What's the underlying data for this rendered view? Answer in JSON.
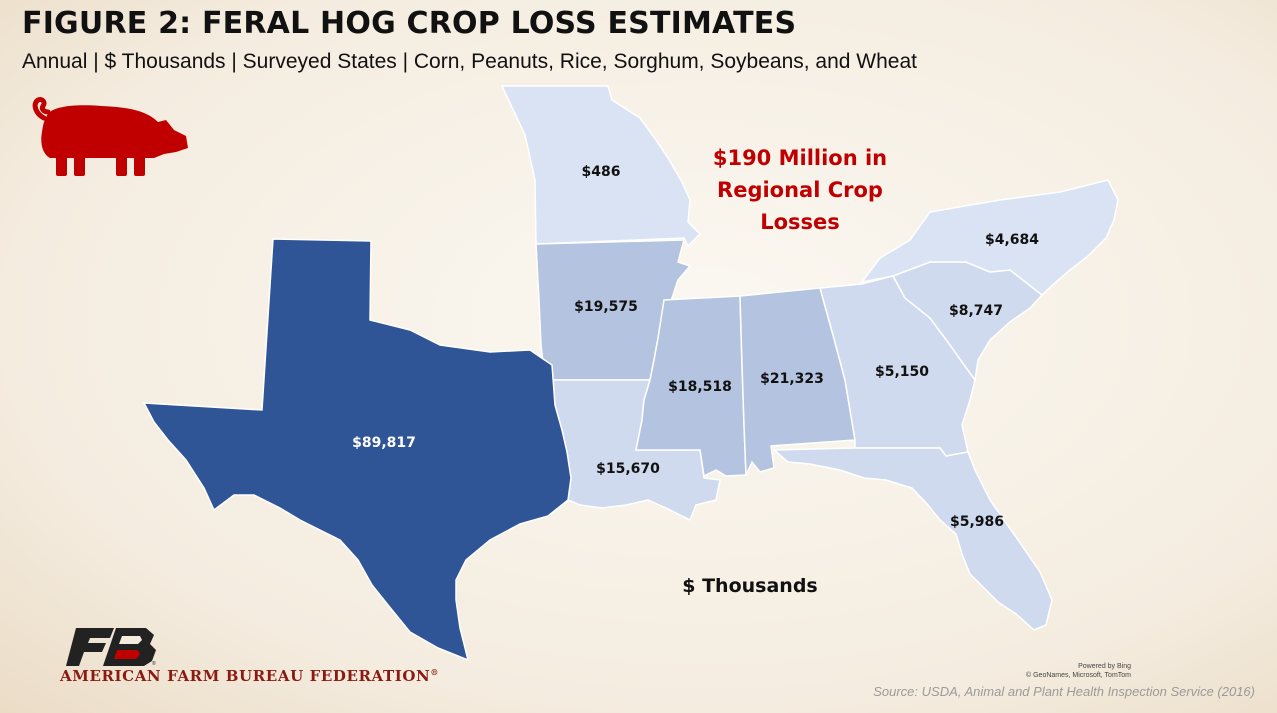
{
  "title": "FIGURE 2: FERAL HOG CROP LOSS ESTIMATES",
  "subtitle": "Annual | $ Thousands | Surveyed States | Corn, Peanuts, Rice, Sorghum, Soybeans, and Wheat",
  "callout": [
    "$190 Million in",
    "Regional Crop",
    "Losses"
  ],
  "units_label": "$ Thousands",
  "colors": {
    "texas": "#2f5597",
    "tier2": "#b4c4e0",
    "tier3": "#cfdaee",
    "tier4": "#dae3f3",
    "accent": "#c00000"
  },
  "map_data": {
    "type": "choropleth",
    "unit": "$ Thousands",
    "states": [
      {
        "id": "texas",
        "value": 89817,
        "label": "$89,817",
        "tier": "texas"
      },
      {
        "id": "missouri",
        "value": 486,
        "label": "$486",
        "tier": "tier4"
      },
      {
        "id": "arkansas",
        "value": 19575,
        "label": "$19,575",
        "tier": "tier2"
      },
      {
        "id": "louisiana",
        "value": 15670,
        "label": "$15,670",
        "tier": "tier3"
      },
      {
        "id": "mississippi",
        "value": 18518,
        "label": "$18,518",
        "tier": "tier2"
      },
      {
        "id": "alabama",
        "value": 21323,
        "label": "$21,323",
        "tier": "tier2"
      },
      {
        "id": "georgia",
        "value": 5150,
        "label": "$5,150",
        "tier": "tier3"
      },
      {
        "id": "florida",
        "value": 5986,
        "label": "$5,986",
        "tier": "tier3"
      },
      {
        "id": "south-carolina",
        "value": 8747,
        "label": "$8,747",
        "tier": "tier3"
      },
      {
        "id": "north-carolina",
        "value": 4684,
        "label": "$4,684",
        "tier": "tier4"
      }
    ]
  },
  "logo": {
    "mark": "FB",
    "org_name": "AMERICAN FARM BUREAU FEDERATION",
    "registered": "®"
  },
  "attribution": {
    "line1": "Powered by Bing",
    "line2": "© GeoNames, Microsoft, TomTom"
  },
  "source": "Source: USDA, Animal and Plant Health Inspection Service (2016)",
  "icons": {
    "hog": "hog-icon"
  }
}
